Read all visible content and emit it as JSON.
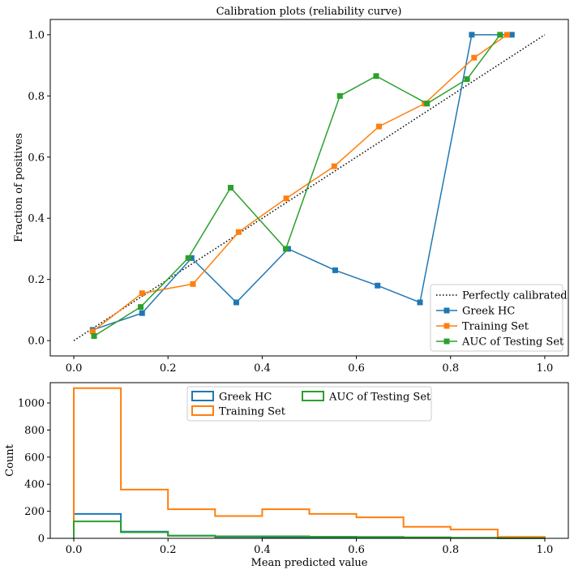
{
  "colors": {
    "blue": "#1f77b4",
    "orange": "#ff7f0e",
    "green": "#2ca02c",
    "diagonal": "#000000"
  },
  "chart_data": [
    {
      "type": "line",
      "title": "Calibration plots  (reliability curve)",
      "xlabel": "",
      "ylabel": "Fraction of positives",
      "xlim": [
        -0.05,
        1.05
      ],
      "ylim": [
        -0.05,
        1.05
      ],
      "xticks": [
        0.0,
        0.2,
        0.4,
        0.6,
        0.8,
        1.0
      ],
      "xtick_labels": [
        "0.0",
        "0.2",
        "0.4",
        "0.6",
        "0.8",
        "1.0"
      ],
      "yticks": [
        0.0,
        0.2,
        0.4,
        0.6,
        0.8,
        1.0
      ],
      "ytick_labels": [
        "0.0",
        "0.2",
        "0.4",
        "0.6",
        "0.8",
        "1.0"
      ],
      "grid": false,
      "legend_position": "bottom-right",
      "reference_line": {
        "name": "Perfectly calibrated",
        "x": [
          0,
          1
        ],
        "y": [
          0,
          1
        ],
        "style": "dotted"
      },
      "series": [
        {
          "name": "Greek HC",
          "color": "#1f77b4",
          "x": [
            0.04,
            0.145,
            0.25,
            0.345,
            0.455,
            0.555,
            0.645,
            0.735,
            0.845,
            0.93
          ],
          "y": [
            0.035,
            0.09,
            0.27,
            0.125,
            0.3,
            0.23,
            0.18,
            0.125,
            1.0,
            1.0
          ]
        },
        {
          "name": "Training Set",
          "color": "#ff7f0e",
          "x": [
            0.04,
            0.145,
            0.253,
            0.35,
            0.451,
            0.553,
            0.648,
            0.745,
            0.85,
            0.92
          ],
          "y": [
            0.03,
            0.155,
            0.185,
            0.355,
            0.465,
            0.57,
            0.7,
            0.775,
            0.925,
            1.0
          ]
        },
        {
          "name": "AUC of Testing Set",
          "color": "#2ca02c",
          "x": [
            0.043,
            0.142,
            0.243,
            0.333,
            0.45,
            0.565,
            0.642,
            0.75,
            0.835,
            0.905
          ],
          "y": [
            0.015,
            0.11,
            0.27,
            0.5,
            0.3,
            0.8,
            0.865,
            0.775,
            0.855,
            1.0
          ]
        }
      ]
    },
    {
      "type": "histogram",
      "title": "",
      "xlabel": "Mean predicted value",
      "ylabel": "Count",
      "xlim": [
        -0.05,
        1.05
      ],
      "ylim": [
        0,
        1150
      ],
      "xticks": [
        0.0,
        0.2,
        0.4,
        0.6,
        0.8,
        1.0
      ],
      "xtick_labels": [
        "0.0",
        "0.2",
        "0.4",
        "0.6",
        "0.8",
        "1.0"
      ],
      "yticks": [
        0,
        200,
        400,
        600,
        800,
        1000
      ],
      "ytick_labels": [
        "0",
        "200",
        "400",
        "600",
        "800",
        "1000"
      ],
      "grid": false,
      "legend_position": "upper-center",
      "bin_edges": [
        0.0,
        0.1,
        0.2,
        0.3,
        0.4,
        0.5,
        0.6,
        0.7,
        0.8,
        0.9,
        1.0
      ],
      "series": [
        {
          "name": "Greek HC",
          "color": "#1f77b4",
          "values": [
            180,
            50,
            20,
            10,
            8,
            6,
            5,
            4,
            3,
            2
          ]
        },
        {
          "name": "Training Set",
          "color": "#ff7f0e",
          "values": [
            1110,
            360,
            215,
            165,
            215,
            180,
            155,
            85,
            65,
            10
          ]
        },
        {
          "name": "AUC of Testing Set",
          "color": "#2ca02c",
          "values": [
            125,
            45,
            20,
            15,
            15,
            12,
            10,
            8,
            5,
            2
          ]
        }
      ]
    }
  ]
}
